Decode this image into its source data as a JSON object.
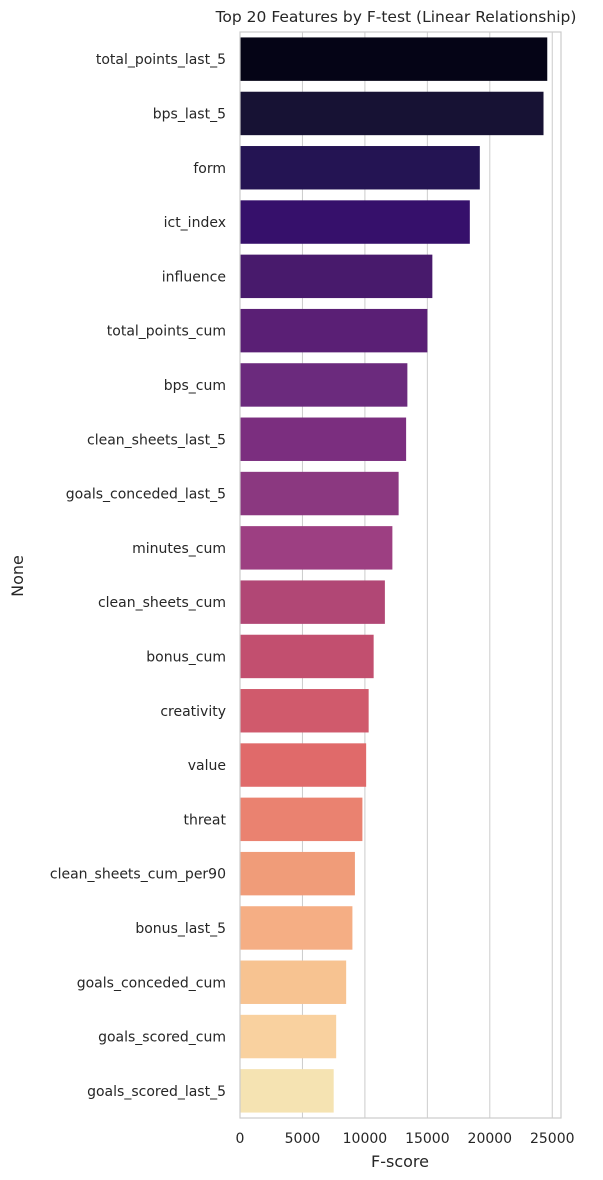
{
  "chart_data": {
    "type": "bar",
    "orientation": "horizontal",
    "title": "Top 20 Features by F-test (Linear Relationship)",
    "xlabel": "F-score",
    "ylabel": "None",
    "xlim": [
      0,
      25700
    ],
    "xticks": [
      0,
      5000,
      10000,
      15000,
      20000,
      25000
    ],
    "xtick_labels": [
      "0",
      "5000",
      "10000",
      "15000",
      "20000",
      "25000"
    ],
    "grid": "x",
    "palette": "magma",
    "categories": [
      "total_points_last_5",
      "bps_last_5",
      "form",
      "ict_index",
      "influence",
      "total_points_cum",
      "bps_cum",
      "clean_sheets_last_5",
      "goals_conceded_last_5",
      "minutes_cum",
      "clean_sheets_cum",
      "bonus_cum",
      "creativity",
      "value",
      "threat",
      "clean_sheets_cum_per90",
      "bonus_last_5",
      "goals_conceded_cum",
      "goals_scored_cum",
      "goals_scored_last_5"
    ],
    "values": [
      24600,
      24300,
      19200,
      18400,
      15400,
      15000,
      13400,
      13300,
      12700,
      12200,
      11600,
      10700,
      10300,
      10100,
      9800,
      9200,
      9000,
      8500,
      7700,
      7500
    ],
    "colors": [
      "#050416",
      "#171234",
      "#241453",
      "#36106b",
      "#481a6c",
      "#5a1f75",
      "#6b2a7d",
      "#7b2e7f",
      "#8b3880",
      "#9d3f82",
      "#b14775",
      "#c24f6f",
      "#d05a6c",
      "#e06a6a",
      "#ea8270",
      "#f09c79",
      "#f5ae84",
      "#f7c391",
      "#f9d19f",
      "#f5e3b2"
    ]
  }
}
